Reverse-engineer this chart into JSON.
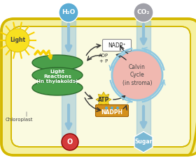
{
  "bg_color": "#ffffff",
  "chloroplast_outer_color": "#f5f0a0",
  "chloroplast_outer_edge": "#d4b800",
  "chloroplast_inner_color": "#fafae0",
  "thylakoid_color": "#4a9e4a",
  "thylakoid_edge": "#2d6b2d",
  "calvin_color": "#f0b8b0",
  "calvin_edge": "#90c8e0",
  "h2o_circle_color": "#5bacd4",
  "co2_circle_color": "#a0a0a8",
  "o2_circle_color": "#d43a3a",
  "sugar_hex_color": "#7ab8d4",
  "nadp_box_color": "#ffffff",
  "nadph_box_color": "#d4901c",
  "atp_box_color": "#f0d020",
  "arrow_color_blue": "#90c0d8",
  "arrow_color_dark": "#333333",
  "sun_color": "#f8e020",
  "sun_ray_color": "#f8d000",
  "zigzag_color": "#f8d000",
  "light_label": "Light",
  "h2o_label": "H₂O",
  "co2_label": "CO₂",
  "o2_label": "O",
  "sugar_label": "Sugar",
  "chloroplast_label": "Chloroplast",
  "thylakoid_label": "Light\nReactions\n(in thylakoids)",
  "calvin_label": "Calvin\nCycle\n(in stroma)",
  "nadp_label": "NADP⁺",
  "adp_label": "ADP\n+ P",
  "nadph_label": "NADPH",
  "atp_label": "ATP",
  "figsize": [
    2.8,
    2.27
  ],
  "dpi": 100
}
